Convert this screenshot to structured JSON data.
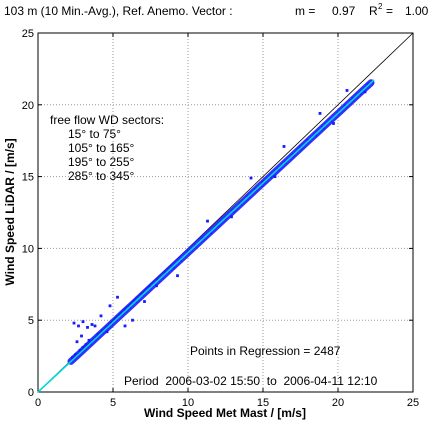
{
  "header": {
    "title": "103 m (10 Min.-Avg.), Ref. Anemo. Vector :",
    "slope_label": "m =",
    "slope_value": "0.97",
    "r2_symbol": "R",
    "r2_exponent": "2",
    "r2_eq": "=",
    "r2_value": "1.00"
  },
  "annotations": {
    "sectors_title": "free flow WD sectors:",
    "sectors": [
      "15° to 75°",
      "105° to 165°",
      "195° to 255°",
      "285° to 345°"
    ],
    "points_text": "Points in Regression = 2487",
    "period_text": "Period  2006-03-02 15:50  to  2006-04-11 12:10"
  },
  "colors": {
    "points": "#1a1aff",
    "regression_line": "#00d8d8",
    "identity_line": "#000000",
    "grid": "#9a9a9a"
  },
  "chart_data": {
    "type": "scatter",
    "xlabel": "Wind Speed Met Mast / [m/s]",
    "ylabel": "Wind Speed LiDAR / [m/s]",
    "xlim": [
      0,
      25
    ],
    "ylim": [
      0,
      25
    ],
    "xticks": [
      0,
      5,
      10,
      15,
      20,
      25
    ],
    "yticks": [
      0,
      5,
      10,
      15,
      20,
      25
    ],
    "grid": true,
    "regression": {
      "slope": 0.97,
      "intercept": 0,
      "r2": 1.0,
      "n": 2487
    },
    "identity_line": true,
    "points_x_range": [
      2.2,
      22.4
    ],
    "series": [
      {
        "values": [
          [
            2.3,
            2.4
          ],
          [
            2.5,
            2.6
          ],
          [
            2.8,
            2.9
          ],
          [
            3.0,
            3.1
          ],
          [
            3.2,
            3.3
          ],
          [
            3.5,
            3.4
          ],
          [
            3.8,
            3.7
          ],
          [
            4.0,
            4.0
          ],
          [
            4.3,
            4.2
          ],
          [
            4.6,
            4.5
          ],
          [
            4.9,
            4.8
          ],
          [
            5.2,
            5.1
          ],
          [
            5.5,
            5.4
          ],
          [
            5.8,
            5.7
          ],
          [
            6.1,
            5.9
          ],
          [
            6.5,
            6.3
          ],
          [
            7.0,
            6.8
          ],
          [
            7.5,
            7.3
          ],
          [
            8.0,
            7.8
          ],
          [
            8.5,
            8.3
          ],
          [
            9.0,
            8.7
          ],
          [
            9.5,
            9.2
          ],
          [
            10.0,
            9.7
          ],
          [
            10.5,
            10.2
          ],
          [
            11.0,
            10.7
          ],
          [
            11.5,
            11.1
          ],
          [
            12.0,
            11.6
          ],
          [
            12.5,
            12.1
          ],
          [
            13.0,
            12.6
          ],
          [
            13.5,
            13.1
          ],
          [
            14.0,
            13.6
          ],
          [
            14.5,
            14.1
          ],
          [
            15.0,
            14.6
          ],
          [
            15.5,
            15.0
          ],
          [
            16.0,
            15.5
          ],
          [
            16.5,
            16.0
          ],
          [
            17.0,
            16.5
          ],
          [
            17.5,
            17.0
          ],
          [
            18.0,
            17.5
          ],
          [
            18.5,
            17.9
          ],
          [
            19.0,
            18.4
          ],
          [
            19.5,
            18.9
          ],
          [
            20.0,
            19.4
          ],
          [
            20.5,
            19.9
          ],
          [
            21.0,
            20.4
          ],
          [
            21.5,
            20.8
          ],
          [
            22.0,
            21.4
          ],
          [
            22.3,
            21.6
          ],
          [
            2.4,
            4.8
          ],
          [
            2.7,
            4.6
          ],
          [
            3.0,
            4.9
          ],
          [
            3.3,
            4.5
          ],
          [
            3.6,
            4.7
          ],
          [
            2.9,
            3.9
          ],
          [
            4.2,
            5.3
          ],
          [
            4.8,
            6.0
          ],
          [
            5.3,
            6.6
          ],
          [
            3.8,
            4.6
          ],
          [
            2.6,
            3.5
          ],
          [
            4.6,
            4.2
          ],
          [
            5.8,
            4.6
          ],
          [
            6.3,
            5.0
          ],
          [
            7.1,
            6.3
          ],
          [
            7.9,
            7.4
          ],
          [
            9.3,
            8.1
          ],
          [
            3.4,
            3.6
          ],
          [
            11.3,
            11.9
          ],
          [
            14.2,
            14.9
          ],
          [
            16.4,
            17.1
          ],
          [
            18.8,
            19.4
          ],
          [
            20.6,
            21.0
          ],
          [
            21.8,
            20.9
          ],
          [
            19.7,
            18.7
          ],
          [
            15.8,
            15.0
          ],
          [
            12.9,
            12.2
          ]
        ]
      }
    ]
  }
}
